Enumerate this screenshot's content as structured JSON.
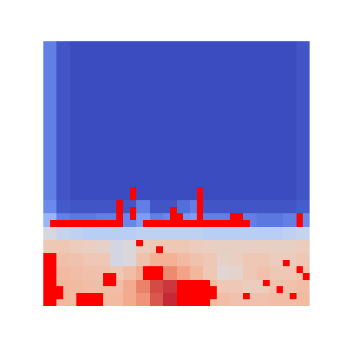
{
  "chart_data": {
    "type": "heatmap",
    "xlim": [
      0,
      40
    ],
    "ylim": [
      0,
      40
    ],
    "tick_labels": false,
    "zlim": [
      0,
      1
    ],
    "color": "#ff0000",
    "cells": [
      [
        0.12,
        0.02,
        0,
        0,
        0,
        0,
        0,
        0,
        0,
        0,
        0,
        0,
        0,
        0,
        0,
        0,
        0,
        0,
        0,
        0.02
      ],
      [
        0.12,
        0.02,
        0,
        0,
        0,
        0,
        0,
        0,
        0,
        0,
        0,
        0,
        0,
        0,
        0,
        0,
        0,
        0,
        0,
        0.02
      ],
      [
        0.12,
        0.02,
        0,
        0,
        0,
        0,
        0,
        0,
        0,
        0,
        0,
        0,
        0,
        0,
        0,
        0,
        0,
        0,
        0,
        0.02
      ],
      [
        0.12,
        0.02,
        0,
        0,
        0,
        0,
        0,
        0,
        0,
        0,
        0,
        0,
        0,
        0,
        0,
        0,
        0,
        0,
        0,
        0.02
      ],
      [
        0.12,
        0.02,
        0,
        0,
        0,
        0,
        0,
        0,
        0,
        0,
        0,
        0,
        0,
        0,
        0,
        0,
        0,
        0,
        0,
        0.02
      ],
      [
        0.12,
        0.02,
        0,
        0,
        0,
        0,
        0,
        0,
        0,
        0,
        0,
        0,
        0,
        0,
        0,
        0,
        0,
        0,
        0,
        0.02
      ],
      [
        0.12,
        0.02,
        0,
        0,
        0,
        0,
        0,
        0,
        0,
        0,
        0,
        0,
        0,
        0,
        0,
        0,
        0,
        0,
        0,
        0.02
      ],
      [
        0.12,
        0.02,
        0,
        0,
        0,
        0,
        0,
        0,
        0,
        0,
        0,
        0,
        0,
        0,
        0,
        0,
        0,
        0,
        0,
        0.02
      ],
      [
        0.12,
        0.02,
        0,
        0,
        0,
        0,
        0,
        0,
        0,
        0,
        0,
        0,
        0,
        0,
        0,
        0,
        0,
        0,
        0,
        0.02
      ],
      [
        0.12,
        0.02,
        0,
        0,
        0,
        0,
        0,
        0,
        0,
        0,
        0,
        0,
        0,
        0,
        0,
        0,
        0,
        0,
        0,
        0.02
      ],
      [
        0.12,
        0.02,
        0,
        0,
        0,
        0,
        0,
        0,
        0,
        0,
        0,
        0,
        0,
        0,
        0,
        0,
        0,
        0,
        0,
        0.02
      ],
      [
        0.12,
        0.02,
        0,
        0,
        0,
        0,
        0,
        0,
        0,
        0,
        0,
        0,
        0,
        0,
        0,
        0,
        0,
        0,
        0,
        0.02
      ],
      [
        0.15,
        0.03,
        0.02,
        0.02,
        0.02,
        0.02,
        0.02,
        0.12,
        0.02,
        0.02,
        0.08,
        0.12,
        0.02,
        0.02,
        0.02,
        0.02,
        0.02,
        0.02,
        0.02,
        0.04
      ],
      [
        0.28,
        0.12,
        0.1,
        0.1,
        0.12,
        0.12,
        0.14,
        0.2,
        0.12,
        0.14,
        0.18,
        0.2,
        0.12,
        0.12,
        0.12,
        0.12,
        0.1,
        0.1,
        0.12,
        0.15
      ],
      [
        0.48,
        0.42,
        0.4,
        0.38,
        0.38,
        0.38,
        0.38,
        0.4,
        0.4,
        0.4,
        0.4,
        0.4,
        0.38,
        0.38,
        0.38,
        0.38,
        0.38,
        0.38,
        0.4,
        0.42
      ],
      [
        0.6,
        0.6,
        0.58,
        0.57,
        0.55,
        0.47,
        0.5,
        0.58,
        0.6,
        0.6,
        0.6,
        0.58,
        0.57,
        0.56,
        0.56,
        0.56,
        0.56,
        0.56,
        0.56,
        0.58
      ],
      [
        0.63,
        0.63,
        0.62,
        0.6,
        0.6,
        0.47,
        0.5,
        0.62,
        0.68,
        0.68,
        0.65,
        0.62,
        0.6,
        0.55,
        0.57,
        0.6,
        0.6,
        0.58,
        0.58,
        0.6
      ],
      [
        0.65,
        0.65,
        0.64,
        0.63,
        0.62,
        0.6,
        0.64,
        0.7,
        0.76,
        0.78,
        0.72,
        0.66,
        0.6,
        0.52,
        0.54,
        0.6,
        0.62,
        0.6,
        0.6,
        0.62
      ],
      [
        0.66,
        0.66,
        0.65,
        0.64,
        0.64,
        0.64,
        0.7,
        0.8,
        0.9,
        0.93,
        0.82,
        0.72,
        0.65,
        0.6,
        0.6,
        0.58,
        0.58,
        0.62,
        0.62,
        0.64
      ],
      [
        0.66,
        0.66,
        0.65,
        0.65,
        0.65,
        0.65,
        0.7,
        0.76,
        0.88,
        0.95,
        0.86,
        0.72,
        0.66,
        0.64,
        0.62,
        0.62,
        0.62,
        0.64,
        0.64,
        0.65
      ]
    ],
    "mask": [
      [
        1,
        27
      ],
      [
        2,
        27
      ],
      [
        3,
        27
      ],
      [
        4,
        27
      ],
      [
        5,
        27
      ],
      [
        6,
        27
      ],
      [
        7,
        27
      ],
      [
        8,
        27
      ],
      [
        9,
        27
      ],
      [
        10,
        27
      ],
      [
        11,
        27
      ],
      [
        15,
        27
      ],
      [
        16,
        27
      ],
      [
        17,
        27
      ],
      [
        18,
        27
      ],
      [
        19,
        27
      ],
      [
        20,
        27
      ],
      [
        21,
        27
      ],
      [
        22,
        27
      ],
      [
        23,
        27
      ],
      [
        24,
        27
      ],
      [
        25,
        27
      ],
      [
        26,
        27
      ],
      [
        27,
        27
      ],
      [
        28,
        27
      ],
      [
        29,
        27
      ],
      [
        30,
        27
      ],
      [
        38,
        27
      ],
      [
        11,
        24
      ],
      [
        11,
        25
      ],
      [
        11,
        26
      ],
      [
        13,
        22
      ],
      [
        13,
        23
      ],
      [
        13,
        25
      ],
      [
        13,
        26
      ],
      [
        19,
        25
      ],
      [
        19,
        26
      ],
      [
        20,
        26
      ],
      [
        23,
        22
      ],
      [
        23,
        23
      ],
      [
        23,
        24
      ],
      [
        23,
        25
      ],
      [
        23,
        26
      ],
      [
        28,
        26
      ],
      [
        29,
        26
      ],
      [
        38,
        26
      ],
      [
        0,
        32
      ],
      [
        0,
        33
      ],
      [
        0,
        34
      ],
      [
        0,
        35
      ],
      [
        0,
        36
      ],
      [
        0,
        37
      ],
      [
        0,
        38
      ],
      [
        0,
        39
      ],
      [
        1,
        32
      ],
      [
        1,
        33
      ],
      [
        1,
        34
      ],
      [
        1,
        35
      ],
      [
        1,
        36
      ],
      [
        1,
        37
      ],
      [
        1,
        38
      ],
      [
        1,
        39
      ],
      [
        2,
        37
      ],
      [
        2,
        38
      ],
      [
        5,
        38
      ],
      [
        6,
        38
      ],
      [
        7,
        38
      ],
      [
        8,
        38
      ],
      [
        5,
        39
      ],
      [
        6,
        39
      ],
      [
        7,
        39
      ],
      [
        8,
        39
      ],
      [
        9,
        35
      ],
      [
        10,
        35
      ],
      [
        9,
        36
      ],
      [
        10,
        36
      ],
      [
        15,
        34
      ],
      [
        16,
        34
      ],
      [
        17,
        34
      ],
      [
        15,
        35
      ],
      [
        16,
        35
      ],
      [
        17,
        35
      ],
      [
        20,
        36
      ],
      [
        21,
        36
      ],
      [
        22,
        36
      ],
      [
        23,
        36
      ],
      [
        24,
        36
      ],
      [
        20,
        37
      ],
      [
        21,
        37
      ],
      [
        22,
        37
      ],
      [
        23,
        37
      ],
      [
        24,
        37
      ],
      [
        25,
        37
      ],
      [
        20,
        38
      ],
      [
        21,
        38
      ],
      [
        22,
        38
      ],
      [
        23,
        38
      ],
      [
        24,
        38
      ],
      [
        25,
        38
      ],
      [
        20,
        39
      ],
      [
        21,
        39
      ],
      [
        22,
        39
      ],
      [
        23,
        39
      ],
      [
        24,
        39
      ],
      [
        14,
        30
      ],
      [
        17,
        31
      ],
      [
        36,
        33
      ],
      [
        38,
        34
      ],
      [
        35,
        37
      ],
      [
        37,
        38
      ],
      [
        39,
        35
      ],
      [
        33,
        36
      ],
      [
        30,
        38
      ]
    ]
  }
}
